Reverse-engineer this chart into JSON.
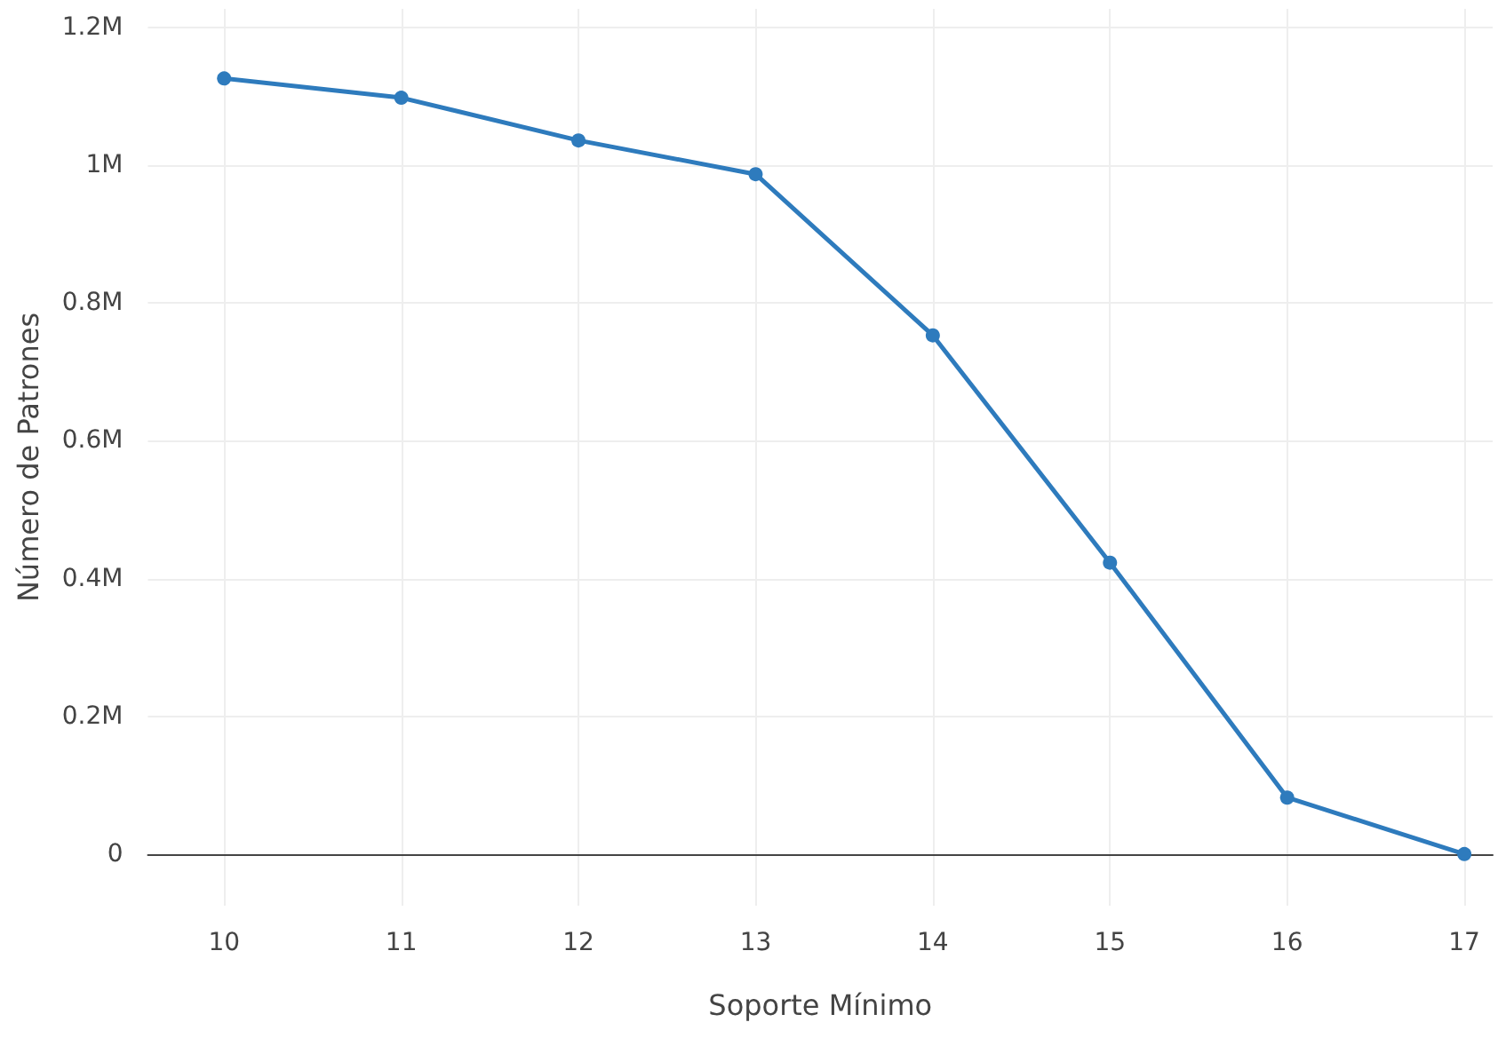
{
  "chart_data": {
    "type": "line",
    "xlabel": "Soporte Mínimo",
    "ylabel": "Número de Patrones",
    "x": [
      10,
      11,
      12,
      13,
      14,
      15,
      16,
      17
    ],
    "series": [
      {
        "color": "#2e7bbd",
        "values": [
          1126000,
          1098000,
          1036000,
          987000,
          753000,
          423000,
          82000,
          0
        ]
      }
    ],
    "xlim": [
      9.57,
      17.16
    ],
    "xticks": [
      10,
      11,
      12,
      13,
      14,
      15,
      16,
      17
    ],
    "ylim": [
      -75000,
      1227000
    ],
    "yticks": [
      {
        "value": 0,
        "label": "0"
      },
      {
        "value": 200000,
        "label": "0.2M"
      },
      {
        "value": 400000,
        "label": "0.4M"
      },
      {
        "value": 600000,
        "label": "0.6M"
      },
      {
        "value": 800000,
        "label": "0.8M"
      },
      {
        "value": 1000000,
        "label": "1M"
      },
      {
        "value": 1200000,
        "label": "1.2M"
      }
    ],
    "grid": true,
    "marker": "circle",
    "line_style": "solid"
  }
}
